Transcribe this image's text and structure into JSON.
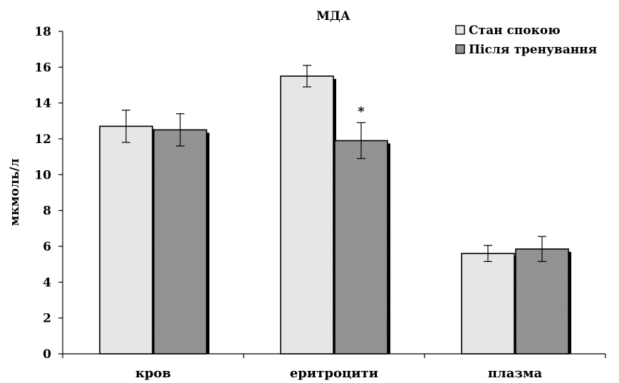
{
  "chart_data": {
    "type": "bar",
    "title": "МДА",
    "ylabel": "мкмоль/л",
    "xlabel": "",
    "ylim": [
      0,
      18
    ],
    "yticks": [
      0,
      2,
      4,
      6,
      8,
      10,
      12,
      14,
      16,
      18
    ],
    "categories": [
      "кров",
      "еритроцити",
      "плазма"
    ],
    "series": [
      {
        "name": "Стан спокою",
        "values": [
          12.7,
          15.5,
          5.6
        ],
        "errors": [
          0.9,
          0.6,
          0.45
        ],
        "color": "#e6e6e6"
      },
      {
        "name": "Після тренування",
        "values": [
          12.5,
          11.9,
          5.85
        ],
        "errors": [
          0.9,
          1.0,
          0.7
        ],
        "color": "#8c8c8c"
      }
    ],
    "annotations": [
      {
        "text": "*",
        "category": 1,
        "series": 1
      }
    ],
    "legend_position": "top-right",
    "grid": false
  }
}
